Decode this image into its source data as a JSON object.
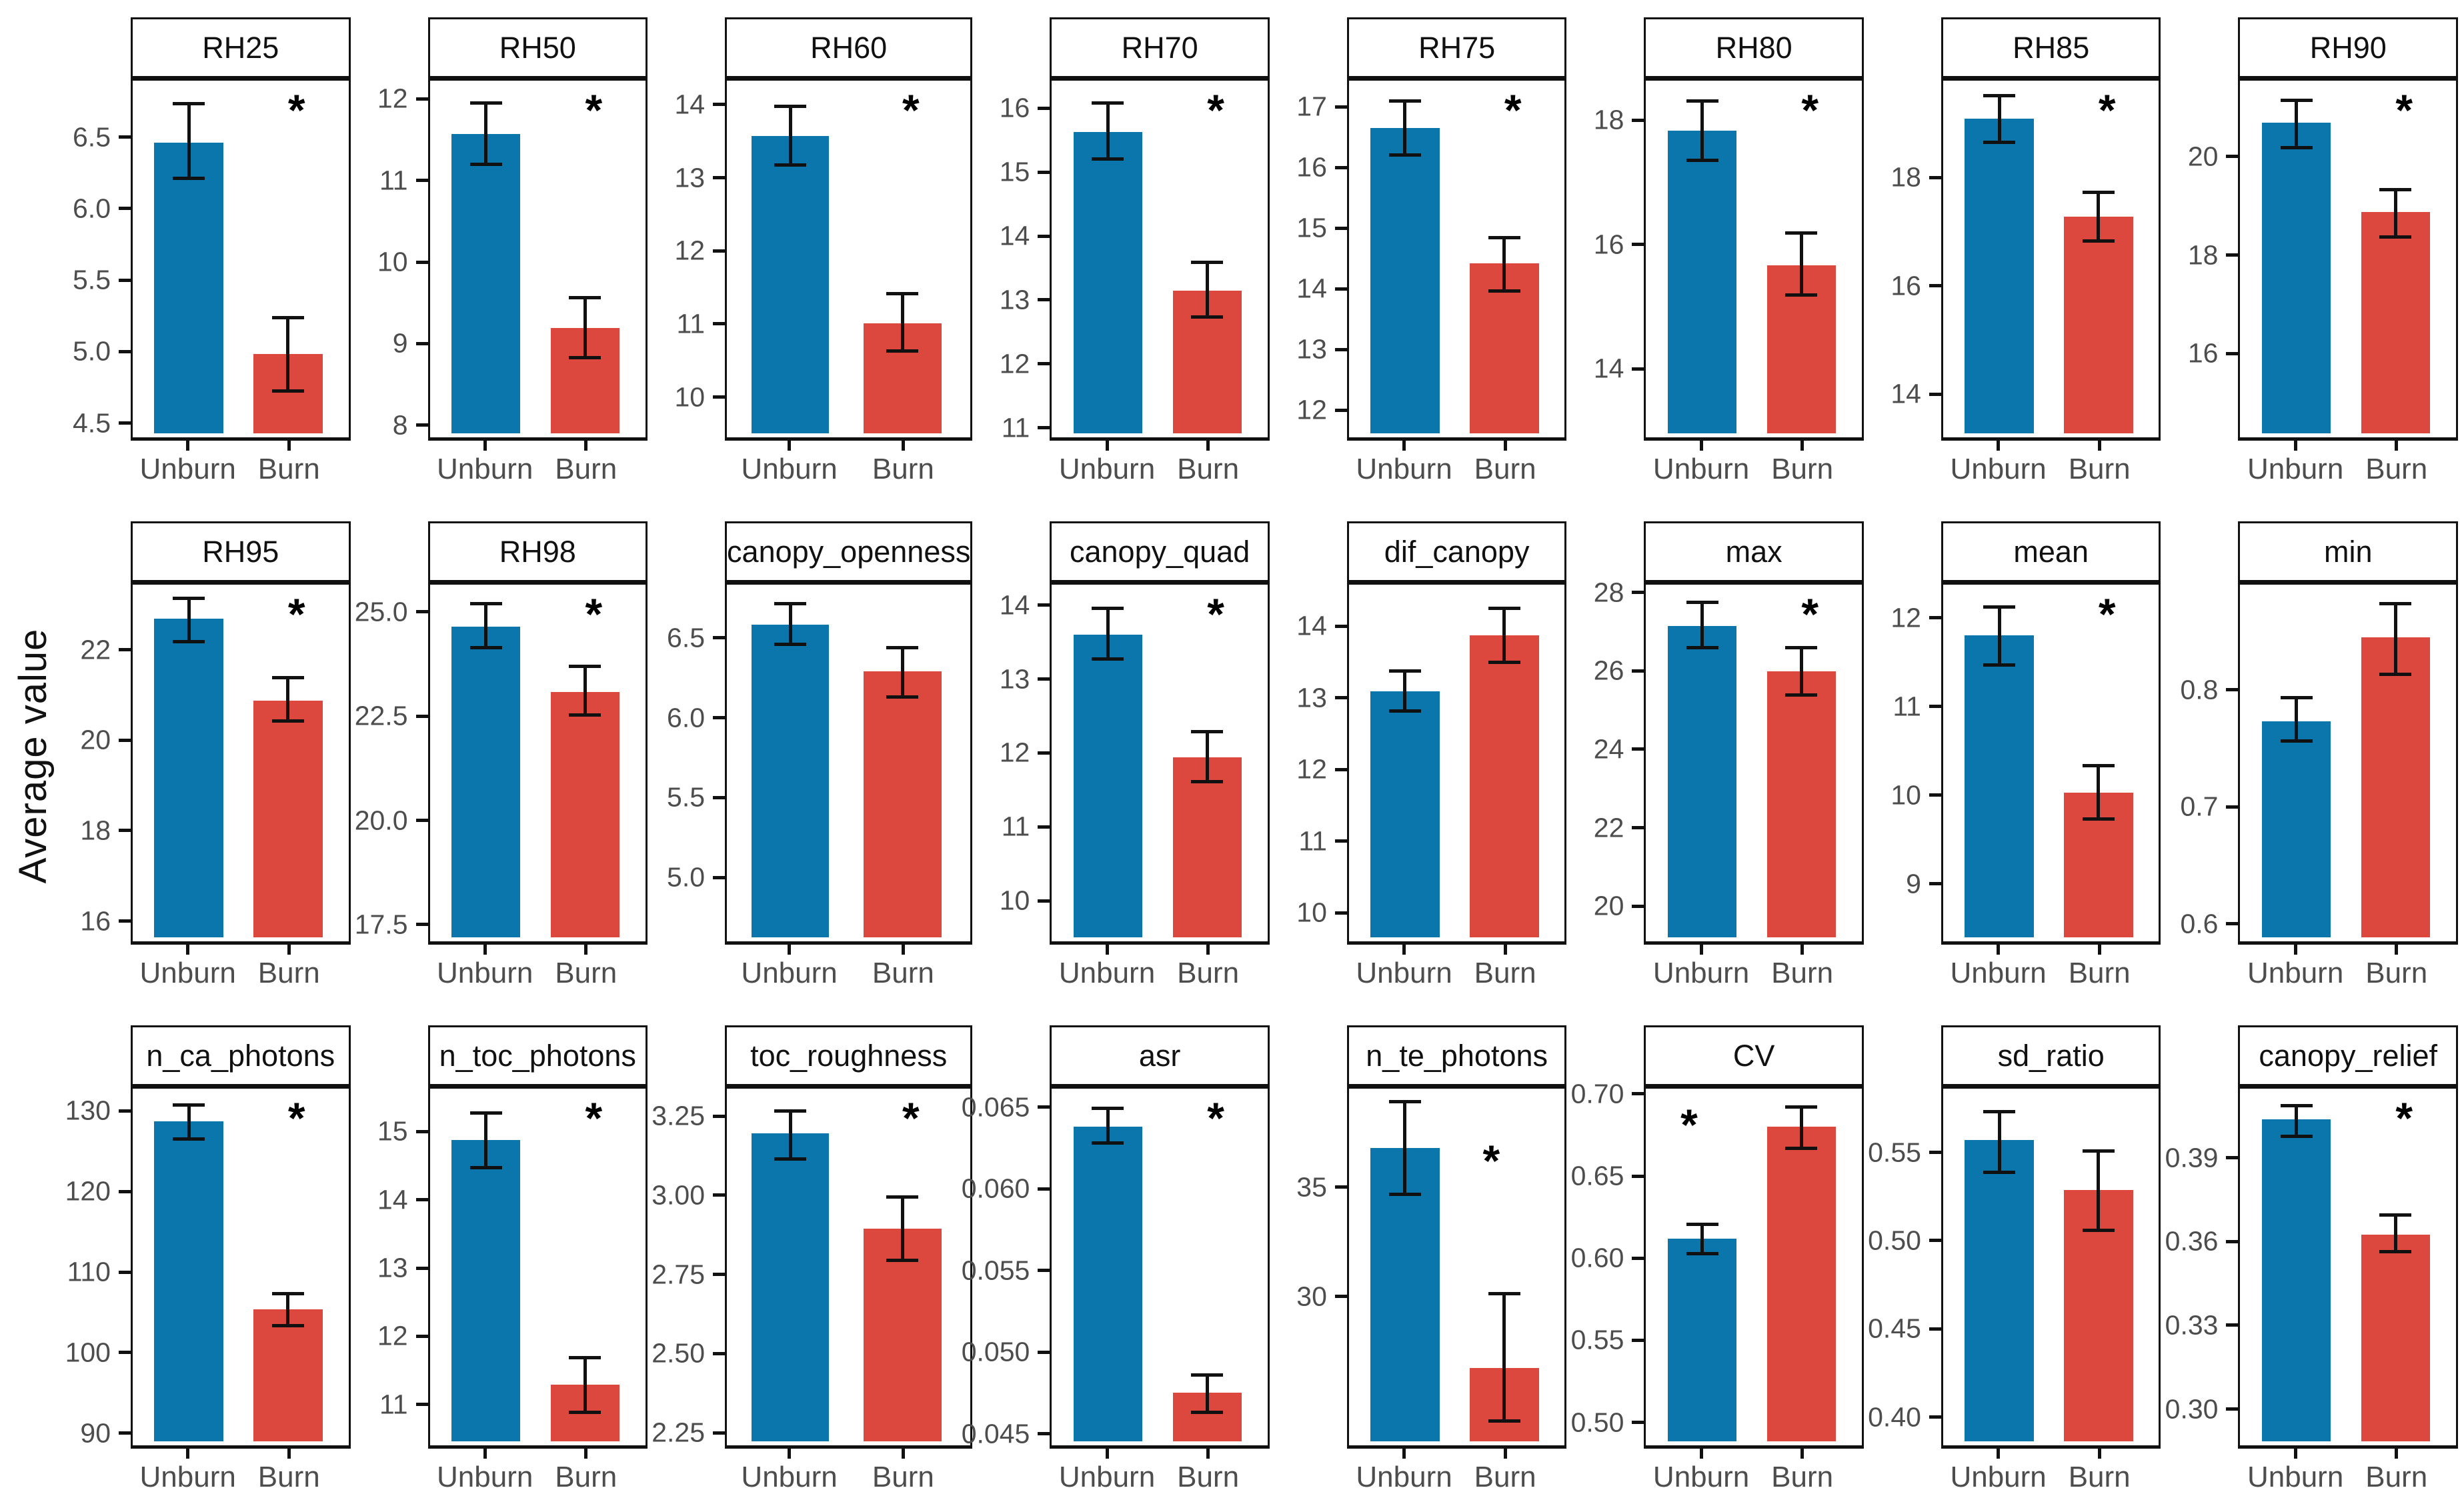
{
  "figure": {
    "y_axis_label": "Average value",
    "x_categories": [
      "Unburn",
      "Burn"
    ],
    "significance_symbol": "*",
    "colors": {
      "unburn_bar": "#0a76ac",
      "burn_bar": "#dc483e",
      "axis_text": "#4d4d4d",
      "border": "#111111"
    },
    "legend_position": "none",
    "grid": "off"
  },
  "chart_data": [
    {
      "type": "bar",
      "title": "RH25",
      "categories": [
        "Unburn",
        "Burn"
      ],
      "values": [
        6.45,
        4.98
      ],
      "err_low": [
        6.2,
        4.72
      ],
      "err_high": [
        6.72,
        5.23
      ],
      "ytick_labels": [
        "4.5",
        "5.0",
        "5.5",
        "6.0",
        "6.5"
      ],
      "ytick_values": [
        4.5,
        5.0,
        5.5,
        6.0,
        6.5
      ],
      "ylim": [
        4.4,
        6.88
      ],
      "significant": true,
      "star_left_pct": 72,
      "star_top_pct": 2
    },
    {
      "type": "bar",
      "title": "RH50",
      "categories": [
        "Unburn",
        "Burn"
      ],
      "values": [
        11.55,
        9.18
      ],
      "err_low": [
        11.18,
        8.82
      ],
      "err_high": [
        11.93,
        9.55
      ],
      "ytick_labels": [
        "8",
        "9",
        "10",
        "11",
        "12"
      ],
      "ytick_values": [
        8,
        9,
        10,
        11,
        12
      ],
      "ylim": [
        7.85,
        12.2
      ],
      "significant": true,
      "star_left_pct": 72,
      "star_top_pct": 2
    },
    {
      "type": "bar",
      "title": "RH60",
      "categories": [
        "Unburn",
        "Burn"
      ],
      "values": [
        13.55,
        11.0
      ],
      "err_low": [
        13.15,
        10.62
      ],
      "err_high": [
        13.95,
        11.4
      ],
      "ytick_labels": [
        "10",
        "11",
        "12",
        "13",
        "14"
      ],
      "ytick_values": [
        10,
        11,
        12,
        13,
        14
      ],
      "ylim": [
        9.45,
        14.3
      ],
      "significant": true,
      "star_left_pct": 72,
      "star_top_pct": 2
    },
    {
      "type": "bar",
      "title": "RH70",
      "categories": [
        "Unburn",
        "Burn"
      ],
      "values": [
        15.6,
        13.13
      ],
      "err_low": [
        15.18,
        12.72
      ],
      "err_high": [
        16.05,
        13.57
      ],
      "ytick_labels": [
        "11",
        "12",
        "13",
        "14",
        "15",
        "16"
      ],
      "ytick_values": [
        11,
        12,
        13,
        14,
        15,
        16
      ],
      "ylim": [
        10.85,
        16.4
      ],
      "significant": true,
      "star_left_pct": 72,
      "star_top_pct": 2
    },
    {
      "type": "bar",
      "title": "RH75",
      "categories": [
        "Unburn",
        "Burn"
      ],
      "values": [
        16.62,
        14.4
      ],
      "err_low": [
        16.18,
        13.95
      ],
      "err_high": [
        17.07,
        14.83
      ],
      "ytick_labels": [
        "12",
        "13",
        "14",
        "15",
        "16",
        "17"
      ],
      "ytick_values": [
        12,
        13,
        14,
        15,
        16,
        17
      ],
      "ylim": [
        11.55,
        17.4
      ],
      "significant": true,
      "star_left_pct": 72,
      "star_top_pct": 2
    },
    {
      "type": "bar",
      "title": "RH80",
      "categories": [
        "Unburn",
        "Burn"
      ],
      "values": [
        17.8,
        15.65
      ],
      "err_low": [
        17.33,
        15.18
      ],
      "err_high": [
        18.27,
        16.17
      ],
      "ytick_labels": [
        "14",
        "16",
        "18"
      ],
      "ytick_values": [
        14,
        16,
        18
      ],
      "ylim": [
        12.9,
        18.6
      ],
      "significant": true,
      "star_left_pct": 72,
      "star_top_pct": 2
    },
    {
      "type": "bar",
      "title": "RH85",
      "categories": [
        "Unburn",
        "Burn"
      ],
      "values": [
        19.05,
        17.25
      ],
      "err_low": [
        18.62,
        16.8
      ],
      "err_high": [
        19.48,
        17.7
      ],
      "ytick_labels": [
        "14",
        "16",
        "18"
      ],
      "ytick_values": [
        14,
        16,
        18
      ],
      "ylim": [
        13.2,
        19.75
      ],
      "significant": true,
      "star_left_pct": 72,
      "star_top_pct": 2
    },
    {
      "type": "bar",
      "title": "RH90",
      "categories": [
        "Unburn",
        "Burn"
      ],
      "values": [
        20.65,
        18.85
      ],
      "err_low": [
        20.15,
        18.35
      ],
      "err_high": [
        21.1,
        19.3
      ],
      "ytick_labels": [
        "16",
        "18",
        "20"
      ],
      "ytick_values": [
        16,
        18,
        20
      ],
      "ylim": [
        14.3,
        21.5
      ],
      "significant": true,
      "star_left_pct": 72,
      "star_top_pct": 2
    },
    {
      "type": "bar",
      "title": "RH95",
      "categories": [
        "Unburn",
        "Burn"
      ],
      "values": [
        22.65,
        20.85
      ],
      "err_low": [
        22.15,
        20.4
      ],
      "err_high": [
        23.1,
        21.35
      ],
      "ytick_labels": [
        "16",
        "18",
        "20",
        "22"
      ],
      "ytick_values": [
        16,
        18,
        20,
        22
      ],
      "ylim": [
        15.55,
        23.4
      ],
      "significant": true,
      "star_left_pct": 72,
      "star_top_pct": 2
    },
    {
      "type": "bar",
      "title": "RH98",
      "categories": [
        "Unburn",
        "Burn"
      ],
      "values": [
        24.6,
        23.05
      ],
      "err_low": [
        24.1,
        22.5
      ],
      "err_high": [
        25.15,
        23.65
      ],
      "ytick_labels": [
        "17.5",
        "20.0",
        "22.5",
        "25.0"
      ],
      "ytick_values": [
        17.5,
        20.0,
        22.5,
        25.0
      ],
      "ylim": [
        17.1,
        25.6
      ],
      "significant": true,
      "star_left_pct": 72,
      "star_top_pct": 2
    },
    {
      "type": "bar",
      "title": "canopy_openness",
      "categories": [
        "Unburn",
        "Burn"
      ],
      "values": [
        6.57,
        6.28
      ],
      "err_low": [
        6.45,
        6.12
      ],
      "err_high": [
        6.7,
        6.43
      ],
      "ytick_labels": [
        "5.0",
        "5.5",
        "6.0",
        "6.5"
      ],
      "ytick_values": [
        5.0,
        5.5,
        6.0,
        6.5
      ],
      "ylim": [
        4.6,
        6.82
      ],
      "significant": false,
      "star_left_pct": 72,
      "star_top_pct": 2
    },
    {
      "type": "bar",
      "title": "canopy_quad",
      "categories": [
        "Unburn",
        "Burn"
      ],
      "values": [
        13.58,
        11.93
      ],
      "err_low": [
        13.25,
        11.6
      ],
      "err_high": [
        13.93,
        12.27
      ],
      "ytick_labels": [
        "10",
        "11",
        "12",
        "13",
        "14"
      ],
      "ytick_values": [
        10,
        11,
        12,
        13,
        14
      ],
      "ylim": [
        9.45,
        14.25
      ],
      "significant": true,
      "star_left_pct": 72,
      "star_top_pct": 2
    },
    {
      "type": "bar",
      "title": "dif_canopy",
      "categories": [
        "Unburn",
        "Burn"
      ],
      "values": [
        13.07,
        13.85
      ],
      "err_low": [
        12.8,
        13.47
      ],
      "err_high": [
        13.35,
        14.22
      ],
      "ytick_labels": [
        "10",
        "11",
        "12",
        "13",
        "14"
      ],
      "ytick_values": [
        10,
        11,
        12,
        13,
        14
      ],
      "ylim": [
        9.6,
        14.55
      ],
      "significant": false,
      "star_left_pct": 72,
      "star_top_pct": 2
    },
    {
      "type": "bar",
      "title": "max",
      "categories": [
        "Unburn",
        "Burn"
      ],
      "values": [
        27.1,
        25.95
      ],
      "err_low": [
        26.55,
        25.35
      ],
      "err_high": [
        27.7,
        26.55
      ],
      "ytick_labels": [
        "20",
        "22",
        "24",
        "26",
        "28"
      ],
      "ytick_values": [
        20,
        22,
        24,
        26,
        28
      ],
      "ylim": [
        19.1,
        28.15
      ],
      "significant": true,
      "star_left_pct": 72,
      "star_top_pct": 2
    },
    {
      "type": "bar",
      "title": "mean",
      "categories": [
        "Unburn",
        "Burn"
      ],
      "values": [
        11.78,
        10.02
      ],
      "err_low": [
        11.45,
        9.72
      ],
      "err_high": [
        12.1,
        10.32
      ],
      "ytick_labels": [
        "9",
        "10",
        "11",
        "12"
      ],
      "ytick_values": [
        9,
        10,
        11,
        12
      ],
      "ylim": [
        8.35,
        12.35
      ],
      "significant": true,
      "star_left_pct": 72,
      "star_top_pct": 2
    },
    {
      "type": "bar",
      "title": "min",
      "categories": [
        "Unburn",
        "Burn"
      ],
      "values": [
        0.772,
        0.843
      ],
      "err_low": [
        0.755,
        0.812
      ],
      "err_high": [
        0.792,
        0.872
      ],
      "ytick_labels": [
        "0.6",
        "0.7",
        "0.8"
      ],
      "ytick_values": [
        0.6,
        0.7,
        0.8
      ],
      "ylim": [
        0.585,
        0.888
      ],
      "significant": false,
      "star_left_pct": 72,
      "star_top_pct": 2
    },
    {
      "type": "bar",
      "title": "n_ca_photons",
      "categories": [
        "Unburn",
        "Burn"
      ],
      "values": [
        128.5,
        105.3
      ],
      "err_low": [
        126.3,
        103.3
      ],
      "err_high": [
        130.5,
        107.2
      ],
      "ytick_labels": [
        "90",
        "100",
        "110",
        "120",
        "130"
      ],
      "ytick_values": [
        90,
        100,
        110,
        120,
        130
      ],
      "ylim": [
        88.5,
        132.5
      ],
      "significant": true,
      "star_left_pct": 72,
      "star_top_pct": 2
    },
    {
      "type": "bar",
      "title": "n_toc_photons",
      "categories": [
        "Unburn",
        "Burn"
      ],
      "values": [
        14.85,
        11.28
      ],
      "err_low": [
        14.45,
        10.88
      ],
      "err_high": [
        15.25,
        11.68
      ],
      "ytick_labels": [
        "11",
        "12",
        "13",
        "14",
        "15"
      ],
      "ytick_values": [
        11,
        12,
        13,
        14,
        15
      ],
      "ylim": [
        10.4,
        15.6
      ],
      "significant": true,
      "star_left_pct": 72,
      "star_top_pct": 2
    },
    {
      "type": "bar",
      "title": "toc_roughness",
      "categories": [
        "Unburn",
        "Burn"
      ],
      "values": [
        3.19,
        2.89
      ],
      "err_low": [
        3.11,
        2.79
      ],
      "err_high": [
        3.26,
        2.99
      ],
      "ytick_labels": [
        "2.25",
        "2.50",
        "2.75",
        "3.00",
        "3.25"
      ],
      "ytick_values": [
        2.25,
        2.5,
        2.75,
        3.0,
        3.25
      ],
      "ylim": [
        2.21,
        3.33
      ],
      "significant": true,
      "star_left_pct": 72,
      "star_top_pct": 2
    },
    {
      "type": "bar",
      "title": "asr",
      "categories": [
        "Unburn",
        "Burn"
      ],
      "values": [
        0.0637,
        0.0475
      ],
      "err_low": [
        0.0627,
        0.0463
      ],
      "err_high": [
        0.0648,
        0.0486
      ],
      "ytick_labels": [
        "0.045",
        "0.050",
        "0.055",
        "0.060",
        "0.065"
      ],
      "ytick_values": [
        0.045,
        0.05,
        0.055,
        0.06,
        0.065
      ],
      "ylim": [
        0.0443,
        0.066
      ],
      "significant": true,
      "star_left_pct": 72,
      "star_top_pct": 2
    },
    {
      "type": "bar",
      "title": "n_te_photons",
      "categories": [
        "Unburn",
        "Burn"
      ],
      "values": [
        36.7,
        26.7
      ],
      "err_low": [
        34.6,
        24.3
      ],
      "err_high": [
        38.8,
        30.1
      ],
      "ytick_labels": [
        "30",
        "35"
      ],
      "ytick_values": [
        30,
        35
      ],
      "ylim": [
        23.2,
        39.4
      ],
      "significant": true,
      "star_left_pct": 62,
      "star_top_pct": 14
    },
    {
      "type": "bar",
      "title": "CV",
      "categories": [
        "Unburn",
        "Burn"
      ],
      "values": [
        0.611,
        0.679
      ],
      "err_low": [
        0.602,
        0.666
      ],
      "err_high": [
        0.62,
        0.691
      ],
      "ytick_labels": [
        "0.50",
        "0.55",
        "0.60",
        "0.65",
        "0.70"
      ],
      "ytick_values": [
        0.5,
        0.55,
        0.6,
        0.65,
        0.7
      ],
      "ylim": [
        0.486,
        0.702
      ],
      "significant": true,
      "star_left_pct": 16,
      "star_top_pct": 4
    },
    {
      "type": "bar",
      "title": "sd_ratio",
      "categories": [
        "Unburn",
        "Burn"
      ],
      "values": [
        0.556,
        0.528
      ],
      "err_low": [
        0.538,
        0.505
      ],
      "err_high": [
        0.572,
        0.55
      ],
      "ytick_labels": [
        "0.40",
        "0.45",
        "0.50",
        "0.55"
      ],
      "ytick_values": [
        0.4,
        0.45,
        0.5,
        0.55
      ],
      "ylim": [
        0.384,
        0.585
      ],
      "significant": false,
      "star_left_pct": 72,
      "star_top_pct": 2
    },
    {
      "type": "bar",
      "title": "canopy_relief",
      "categories": [
        "Unburn",
        "Burn"
      ],
      "values": [
        0.403,
        0.362
      ],
      "err_low": [
        0.397,
        0.356
      ],
      "err_high": [
        0.408,
        0.369
      ],
      "ytick_labels": [
        "0.30",
        "0.33",
        "0.36",
        "0.39"
      ],
      "ytick_values": [
        0.3,
        0.33,
        0.36,
        0.39
      ],
      "ylim": [
        0.287,
        0.414
      ],
      "significant": true,
      "star_left_pct": 72,
      "star_top_pct": 2
    }
  ]
}
